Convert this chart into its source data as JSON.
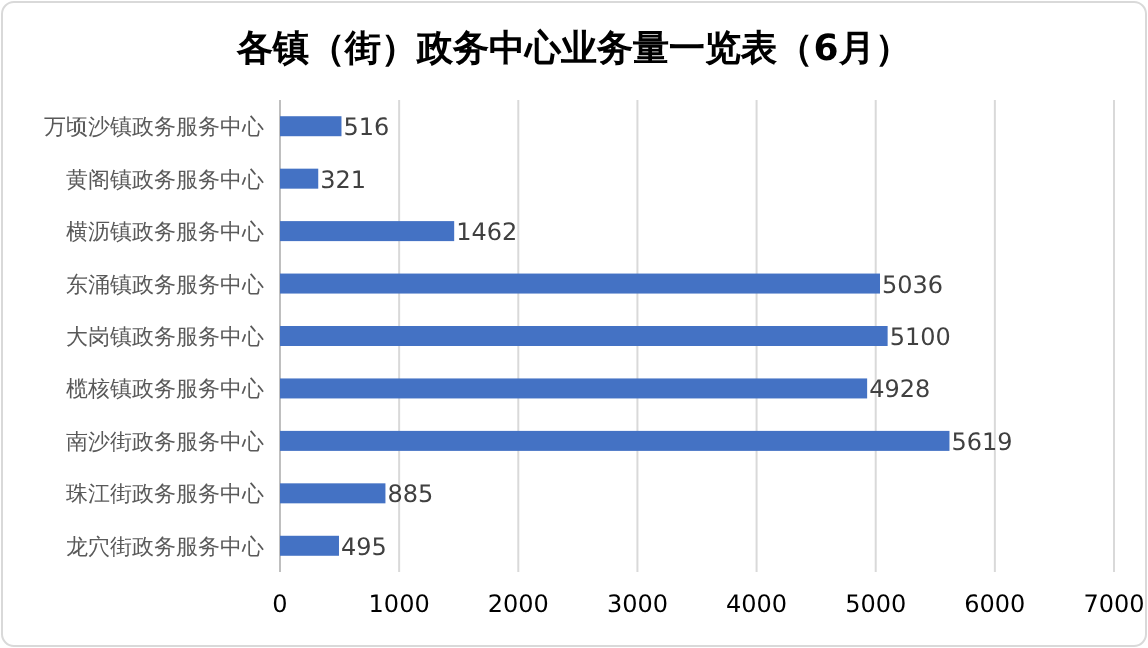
{
  "chart_data": {
    "type": "bar",
    "orientation": "horizontal",
    "title": "各镇（街）政务中心业务量一览表（6月）",
    "categories": [
      "万顷沙镇政务服务中心",
      "黄阁镇政务服务中心",
      "横沥镇政务服务中心",
      "东涌镇政务服务中心",
      "大岗镇政务服务中心",
      "榄核镇政务服务中心",
      "南沙街政务服务中心",
      "珠江街政务服务中心",
      "龙穴街政务服务中心"
    ],
    "values": [
      516,
      321,
      1462,
      5036,
      5100,
      4928,
      5619,
      885,
      495
    ],
    "color": "#4472c4",
    "xlim": [
      0,
      7000
    ],
    "xticks": [
      0,
      1000,
      2000,
      3000,
      4000,
      5000,
      6000,
      7000
    ],
    "grid": "x",
    "data_labels": true
  }
}
